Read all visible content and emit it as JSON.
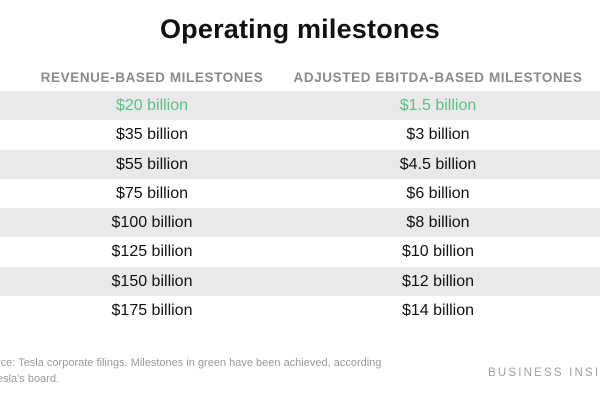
{
  "title": "Operating milestones",
  "columns": {
    "revenue": "REVENUE-BASED MILESTONES",
    "ebitda": "ADJUSTED EBITDA-BASED MILESTONES"
  },
  "accent_color": "#5bbf85",
  "rows": [
    {
      "revenue": "$20 billion",
      "ebitda": "$1.5 billion",
      "achieved": true
    },
    {
      "revenue": "$35 billion",
      "ebitda": "$3 billion",
      "achieved": false
    },
    {
      "revenue": "$55 billion",
      "ebitda": "$4.5 billion",
      "achieved": false
    },
    {
      "revenue": "$75 billion",
      "ebitda": "$6 billion",
      "achieved": false
    },
    {
      "revenue": "$100 billion",
      "ebitda": "$8 billion",
      "achieved": false
    },
    {
      "revenue": "$125 billion",
      "ebitda": "$10 billion",
      "achieved": false
    },
    {
      "revenue": "$150 billion",
      "ebitda": "$12 billion",
      "achieved": false
    },
    {
      "revenue": "$175 billion",
      "ebitda": "$14 billion",
      "achieved": false
    }
  ],
  "footer": {
    "source_line1": "rce: Tesla corporate filings. Milestones in green have been achieved, according",
    "source_line2": "esla's board.",
    "brand": "BUSINESS INSID"
  }
}
